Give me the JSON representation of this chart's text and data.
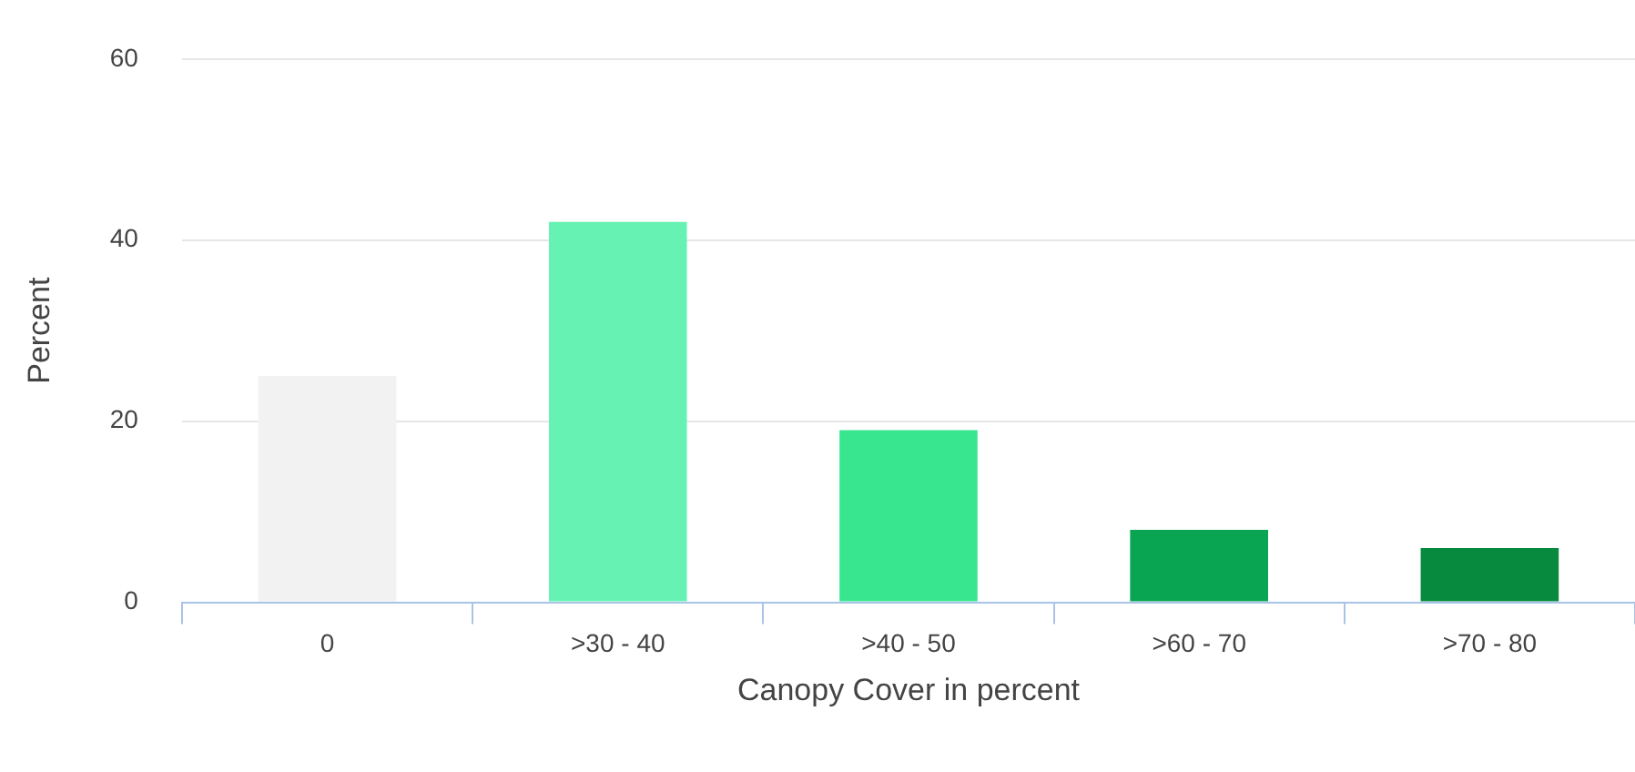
{
  "chart_data": {
    "type": "bar",
    "xlabel": "Canopy Cover in percent",
    "ylabel": "Percent",
    "categories": [
      "0",
      ">30 - 40",
      ">40 - 50",
      ">60 - 70",
      ">70 - 80"
    ],
    "values": [
      25,
      42,
      19,
      8,
      6
    ],
    "colors": [
      "#f2f2f2",
      "#66f2b2",
      "#38e690",
      "#0aa552",
      "#078a3e"
    ],
    "ylim": [
      0,
      60
    ],
    "yticks": [
      0,
      20,
      40,
      60
    ],
    "grid": "y",
    "legend": false
  }
}
